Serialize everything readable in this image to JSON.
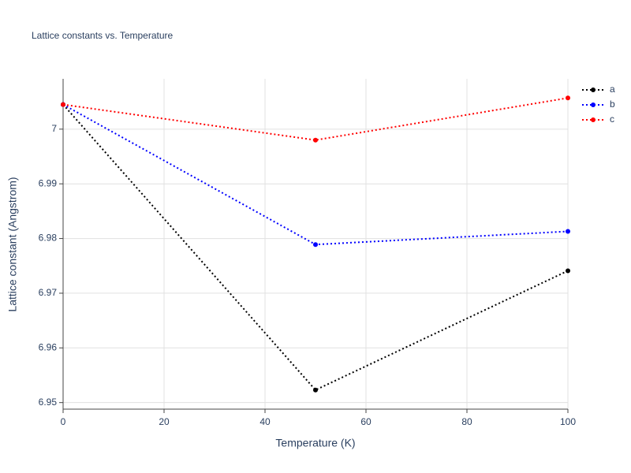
{
  "chart_data": {
    "type": "line",
    "title": "Lattice constants vs. Temperature",
    "x_label": "Temperature (K)",
    "y_label": "Lattice constant (Angstrom)",
    "x": [
      0,
      50,
      100
    ],
    "series": [
      {
        "name": "a",
        "color": "#000000",
        "values": [
          7.0045,
          6.9523,
          6.9741
        ]
      },
      {
        "name": "b",
        "color": "#0000ff",
        "values": [
          7.0045,
          6.9789,
          6.9813
        ]
      },
      {
        "name": "c",
        "color": "#ff0000",
        "values": [
          7.0045,
          6.998,
          7.0057
        ]
      }
    ],
    "xlim": [
      0,
      100
    ],
    "xticks": [
      0,
      20,
      40,
      60,
      80,
      100
    ],
    "ylim": [
      6.9488,
      7.0092
    ],
    "yticks": [
      6.95,
      6.96,
      6.97,
      6.98,
      6.99,
      7
    ],
    "grid": true,
    "legend": "top-right",
    "line_style": "dotted"
  }
}
